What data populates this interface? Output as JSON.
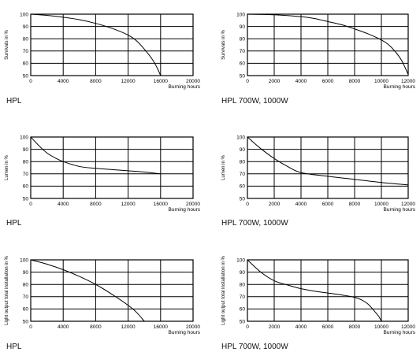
{
  "chart_data": [
    {
      "type": "line",
      "caption": "HPL",
      "xlabel": "Burning hours",
      "ylabel": "Survivals in %",
      "xlim": [
        0,
        20000
      ],
      "ylim": [
        50,
        100
      ],
      "xticks": [
        "0",
        "4000",
        "8000",
        "12000",
        "16000",
        "20000"
      ],
      "yticks": [
        "50",
        "60",
        "70",
        "80",
        "90",
        "100"
      ],
      "grid": true,
      "series": [
        {
          "x": [
            0,
            2000,
            4000,
            6000,
            8000,
            10000,
            12000,
            13000,
            14000,
            15000,
            15600,
            16000
          ],
          "y": [
            100,
            99,
            97.5,
            95.5,
            92.5,
            88.5,
            83,
            78.5,
            71.5,
            63,
            56,
            50
          ]
        }
      ]
    },
    {
      "type": "line",
      "caption": "HPL 700W, 1000W",
      "xlabel": "Burning hours",
      "ylabel": "Survivals in %",
      "xlim": [
        0,
        12000
      ],
      "ylim": [
        50,
        100
      ],
      "xticks": [
        "0",
        "2000",
        "4000",
        "6000",
        "8000",
        "10000",
        "12000"
      ],
      "yticks": [
        "50",
        "60",
        "70",
        "80",
        "90",
        "100"
      ],
      "grid": true,
      "series": [
        {
          "x": [
            0,
            2000,
            4000,
            5000,
            6000,
            7000,
            8000,
            9000,
            10000,
            10500,
            11000,
            11500,
            12000
          ],
          "y": [
            100,
            99.5,
            98,
            96.5,
            94,
            91.5,
            88,
            84,
            79,
            75.5,
            70,
            62.5,
            51
          ]
        }
      ]
    },
    {
      "type": "line",
      "caption": "HPL",
      "xlabel": "Burning hours",
      "ylabel": "Lumen in %",
      "xlim": [
        0,
        20000
      ],
      "ylim": [
        50,
        100
      ],
      "xticks": [
        "0",
        "4000",
        "8000",
        "12000",
        "16000",
        "20000"
      ],
      "yticks": [
        "50",
        "60",
        "70",
        "80",
        "90",
        "100"
      ],
      "grid": true,
      "series": [
        {
          "x": [
            0,
            1000,
            2000,
            3000,
            4000,
            6000,
            8000,
            10000,
            12000,
            14000,
            16000
          ],
          "y": [
            100,
            93,
            87,
            83,
            80,
            76,
            74.5,
            73.5,
            72.5,
            71.5,
            70
          ]
        }
      ]
    },
    {
      "type": "line",
      "caption": "HPL 700W, 1000W",
      "xlabel": "Burning hours",
      "ylabel": "Lumen in %",
      "xlim": [
        0,
        12000
      ],
      "ylim": [
        50,
        100
      ],
      "xticks": [
        "0",
        "2000",
        "4000",
        "6000",
        "8000",
        "10000",
        "12000"
      ],
      "yticks": [
        "50",
        "60",
        "70",
        "80",
        "90",
        "100"
      ],
      "grid": true,
      "series": [
        {
          "x": [
            0,
            1000,
            2000,
            3000,
            4000,
            6000,
            8000,
            10000,
            12000
          ],
          "y": [
            100,
            90.5,
            82.5,
            76,
            71,
            68,
            65.5,
            63,
            61
          ]
        }
      ]
    },
    {
      "type": "line",
      "caption": "HPL",
      "xlabel": "Burning hours",
      "ylabel": "Light output total installation in %",
      "xlim": [
        0,
        20000
      ],
      "ylim": [
        50,
        100
      ],
      "xticks": [
        "0",
        "4000",
        "8000",
        "12000",
        "16000",
        "20000"
      ],
      "yticks": [
        "50",
        "60",
        "70",
        "80",
        "90",
        "100"
      ],
      "grid": true,
      "series": [
        {
          "x": [
            0,
            2000,
            4000,
            6000,
            8000,
            10000,
            12000,
            13000,
            14000
          ],
          "y": [
            100,
            96.5,
            92,
            86.5,
            80,
            72,
            63,
            57.5,
            50
          ]
        }
      ]
    },
    {
      "type": "line",
      "caption": "HPL 700W, 1000W",
      "xlabel": "Burning hours",
      "ylabel": "Light output total installation in %",
      "xlim": [
        0,
        12000
      ],
      "ylim": [
        50,
        100
      ],
      "xticks": [
        "0",
        "2000",
        "4000",
        "6000",
        "8000",
        "10000",
        "12000"
      ],
      "yticks": [
        "50",
        "60",
        "70",
        "80",
        "90",
        "100"
      ],
      "grid": true,
      "series": [
        {
          "x": [
            0,
            1000,
            2000,
            3000,
            4000,
            5000,
            6000,
            7000,
            8000,
            8500,
            9000,
            9500,
            9800,
            10000
          ],
          "y": [
            100,
            90,
            83,
            79.5,
            76.5,
            74.5,
            73,
            71.5,
            69.5,
            67.5,
            64,
            58,
            54,
            50
          ]
        }
      ]
    }
  ]
}
